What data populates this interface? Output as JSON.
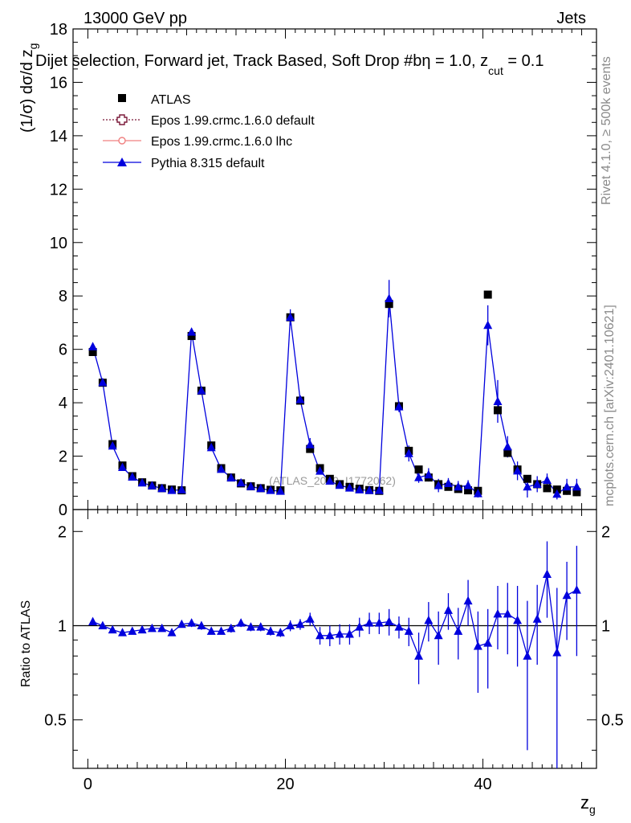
{
  "header": {
    "energy": "13000 GeV pp",
    "category": "Jets",
    "plot_title": "Dijet selection, Forward jet, Track Based, Soft Drop #bη = 1.0, z",
    "title_sub": "cut",
    "title_tail": " = 0.1",
    "watermark": "(ATLAS_2019_I1772062)",
    "side_rivet": "Rivet 4.1.0, ≥ 500k events",
    "side_mcplots": "mcplots.cern.ch [arXiv:2401.10621]"
  },
  "colors": {
    "atlas": "#000000",
    "epos_default": "#7a1838",
    "epos_lhc": "#f08080",
    "pythia": "#0000dd"
  },
  "chart_data": [
    {
      "type": "scatter",
      "panel": "main",
      "ylabel": "(1/σ) dσ/d z",
      "ylabel_sub": "g",
      "xlim": [
        -1.5,
        51.5
      ],
      "ylim": [
        0,
        18
      ],
      "yticks": [
        0,
        2,
        4,
        6,
        8,
        10,
        12,
        14,
        16,
        18
      ],
      "ytick_labels": [
        "0",
        "2",
        "4",
        "6",
        "8",
        "10",
        "12",
        "14",
        "16",
        "18"
      ],
      "legend_position": "top-left",
      "legend": [
        {
          "name": "ATLAS",
          "marker": "square"
        },
        {
          "name": "Epos 1.99.crmc.1.6.0 default",
          "marker": "open-cross"
        },
        {
          "name": "Epos 1.99.crmc.1.6.0 lhc",
          "marker": "circle-cross"
        },
        {
          "name": "Pythia 8.315 default",
          "marker": "triangle"
        }
      ],
      "x": [
        0.5,
        1.5,
        2.5,
        3.5,
        4.5,
        5.5,
        6.5,
        7.5,
        8.5,
        9.5,
        10.5,
        11.5,
        12.5,
        13.5,
        14.5,
        15.5,
        16.5,
        17.5,
        18.5,
        19.5,
        20.5,
        21.5,
        22.5,
        23.5,
        24.5,
        25.5,
        26.5,
        27.5,
        28.5,
        29.5,
        30.5,
        31.5,
        32.5,
        33.5,
        34.5,
        35.5,
        36.5,
        37.5,
        38.5,
        39.5,
        40.5,
        41.5,
        42.5,
        43.5,
        44.5,
        45.5,
        46.5,
        47.5,
        48.5,
        49.5
      ],
      "series": [
        {
          "name": "ATLAS",
          "values": [
            5.9,
            4.75,
            2.45,
            1.65,
            1.25,
            1.02,
            0.9,
            0.8,
            0.75,
            0.72,
            6.5,
            4.45,
            2.4,
            1.55,
            1.2,
            0.98,
            0.87,
            0.8,
            0.74,
            0.72,
            7.2,
            4.08,
            2.27,
            1.55,
            1.15,
            0.95,
            0.85,
            0.78,
            0.73,
            0.7,
            7.7,
            3.87,
            2.2,
            1.5,
            1.2,
            0.95,
            0.85,
            0.77,
            0.72,
            0.7,
            8.05,
            3.72,
            2.12,
            1.5,
            1.15,
            0.95,
            0.8,
            0.75,
            0.7,
            0.65
          ]
        },
        {
          "name": "Pythia 8.315 default",
          "values": [
            6.1,
            4.76,
            2.38,
            1.58,
            1.22,
            1.0,
            0.89,
            0.79,
            0.72,
            0.74,
            6.65,
            4.45,
            2.32,
            1.51,
            1.19,
            1.0,
            0.86,
            0.79,
            0.72,
            0.69,
            7.2,
            4.12,
            2.43,
            1.44,
            1.07,
            0.91,
            0.81,
            0.74,
            0.72,
            0.72,
            7.9,
            3.85,
            2.1,
            1.2,
            1.3,
            0.9,
            0.98,
            0.85,
            0.9,
            0.6,
            6.9,
            4.05,
            2.35,
            1.45,
            0.85,
            0.95,
            1.1,
            0.58,
            0.85,
            0.85
          ],
          "errors": [
            0.05,
            0.05,
            0.05,
            0.05,
            0.05,
            0.04,
            0.04,
            0.04,
            0.04,
            0.04,
            0.12,
            0.1,
            0.08,
            0.06,
            0.05,
            0.04,
            0.04,
            0.04,
            0.04,
            0.04,
            0.3,
            0.12,
            0.25,
            0.1,
            0.08,
            0.06,
            0.06,
            0.05,
            0.05,
            0.05,
            0.7,
            0.2,
            0.3,
            0.2,
            0.25,
            0.25,
            0.2,
            0.22,
            0.2,
            0.15,
            0.75,
            0.8,
            0.4,
            0.35,
            0.4,
            0.3,
            0.25,
            0.2,
            0.3,
            0.3
          ]
        }
      ]
    },
    {
      "type": "scatter",
      "panel": "ratio",
      "ylabel": "Ratio to ATLAS",
      "xlabel": "z",
      "xlabel_sub": "g",
      "ylim": [
        0.35,
        2.35
      ],
      "yticks": [
        0.5,
        1,
        2
      ],
      "ytick_labels": [
        "0.5",
        "1",
        "2"
      ],
      "xticks": [
        0,
        20,
        40
      ],
      "xtick_labels": [
        "0",
        "20",
        "40"
      ],
      "reference_line": 1,
      "series": [
        {
          "name": "Pythia 8.315 / ATLAS",
          "values": [
            1.03,
            1.0,
            0.97,
            0.95,
            0.96,
            0.97,
            0.98,
            0.98,
            0.95,
            1.01,
            1.02,
            1.0,
            0.96,
            0.96,
            0.98,
            1.02,
            0.99,
            0.99,
            0.96,
            0.95,
            1.0,
            1.01,
            1.05,
            0.93,
            0.93,
            0.94,
            0.94,
            0.99,
            1.02,
            1.02,
            1.03,
            0.99,
            0.96,
            0.8,
            1.04,
            0.93,
            1.12,
            0.96,
            1.2,
            0.86,
            0.88,
            1.09,
            1.09,
            1.04,
            0.8,
            1.05,
            1.46,
            0.82,
            1.25,
            1.3
          ],
          "errors": [
            0.02,
            0.02,
            0.02,
            0.02,
            0.02,
            0.02,
            0.02,
            0.02,
            0.02,
            0.02,
            0.03,
            0.03,
            0.02,
            0.02,
            0.03,
            0.03,
            0.03,
            0.03,
            0.03,
            0.03,
            0.04,
            0.04,
            0.05,
            0.06,
            0.07,
            0.07,
            0.07,
            0.07,
            0.08,
            0.08,
            0.1,
            0.08,
            0.1,
            0.15,
            0.15,
            0.18,
            0.15,
            0.18,
            0.2,
            0.25,
            0.25,
            0.25,
            0.28,
            0.3,
            0.4,
            0.3,
            0.4,
            0.5,
            0.35,
            0.5
          ]
        }
      ]
    }
  ]
}
